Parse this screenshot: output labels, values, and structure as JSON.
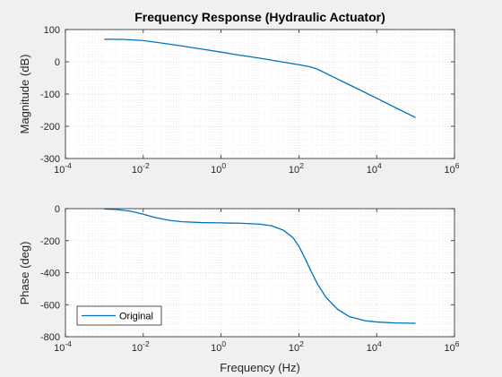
{
  "colors": {
    "line": "#0072BD",
    "axes_bg": "#ffffff",
    "figure_bg": "#f0f0f0",
    "grid": "#d9d9d9",
    "axis": "#262626"
  },
  "chart_data": [
    {
      "type": "line",
      "title": "Frequency Response (Hydraulic Actuator)",
      "xlabel": "",
      "ylabel": "Magnitude (dB)",
      "xscale": "log",
      "xlim": [
        0.0001,
        1000000
      ],
      "ylim": [
        -300,
        100
      ],
      "x_ticks": [
        0.0001,
        0.01,
        1,
        100,
        10000,
        1000000
      ],
      "x_tick_labels": [
        [
          "10",
          "-4"
        ],
        [
          "10",
          "-2"
        ],
        [
          "10",
          "0"
        ],
        [
          "10",
          "2"
        ],
        [
          "10",
          "4"
        ],
        [
          "10",
          "6"
        ]
      ],
      "y_ticks": [
        100,
        0,
        -100,
        -200,
        -300
      ],
      "y_tick_labels": [
        "100",
        "0",
        "-100",
        "-200",
        "-300"
      ],
      "grid": true,
      "series": [
        {
          "x": [
            0.001,
            0.003,
            0.01,
            0.03,
            0.1,
            0.3,
            1,
            3,
            10,
            30,
            100,
            200,
            300,
            1000,
            3000,
            10000,
            30000,
            100000
          ],
          "y": [
            70,
            69.5,
            66,
            58,
            49,
            40,
            30,
            20.5,
            11,
            1.5,
            -9,
            -16,
            -23,
            -54,
            -82,
            -113,
            -142,
            -173
          ]
        }
      ]
    },
    {
      "type": "line",
      "title": "",
      "xlabel": "Frequency (Hz)",
      "ylabel": "Phase (deg)",
      "xscale": "log",
      "xlim": [
        0.0001,
        1000000
      ],
      "ylim": [
        -800,
        0
      ],
      "x_ticks": [
        0.0001,
        0.01,
        1,
        100,
        10000,
        1000000
      ],
      "x_tick_labels": [
        [
          "10",
          "-4"
        ],
        [
          "10",
          "-2"
        ],
        [
          "10",
          "0"
        ],
        [
          "10",
          "2"
        ],
        [
          "10",
          "4"
        ],
        [
          "10",
          "6"
        ]
      ],
      "y_ticks": [
        0,
        -200,
        -400,
        -600,
        -800
      ],
      "y_tick_labels": [
        "0",
        "-200",
        "-400",
        "-600",
        "-800"
      ],
      "grid": true,
      "legend": {
        "position": "bottom-left",
        "entries": [
          "Original"
        ]
      },
      "series": [
        {
          "name": "Original",
          "x": [
            0.001,
            0.002,
            0.005,
            0.01,
            0.02,
            0.05,
            0.1,
            0.3,
            1,
            3,
            10,
            20,
            40,
            70,
            100,
            150,
            200,
            300,
            500,
            1000,
            2000,
            5000,
            10000,
            30000,
            100000
          ],
          "y": [
            -2,
            -5,
            -17,
            -35,
            -55,
            -74,
            -82,
            -87,
            -89,
            -91,
            -97,
            -107,
            -135,
            -180,
            -235,
            -320,
            -385,
            -470,
            -555,
            -630,
            -675,
            -700,
            -708,
            -714,
            -716
          ]
        }
      ]
    }
  ]
}
